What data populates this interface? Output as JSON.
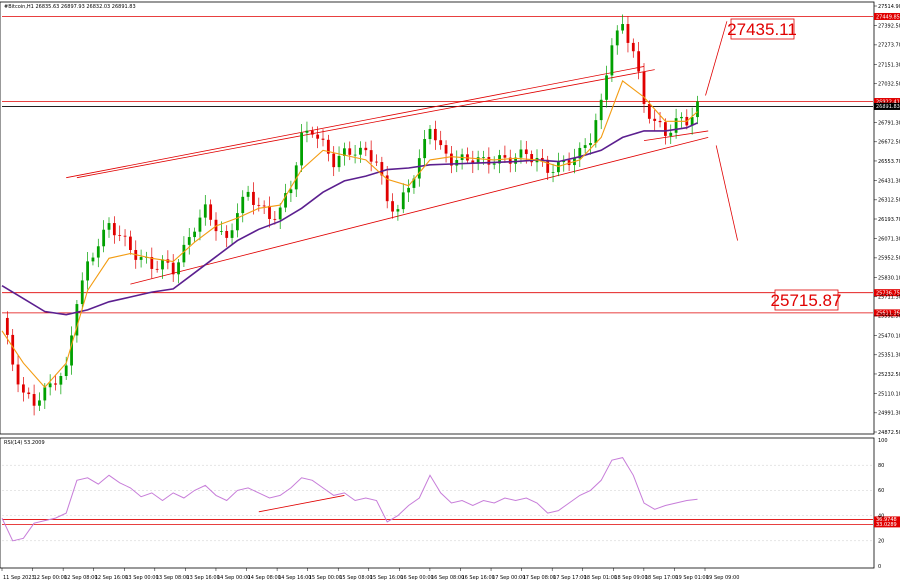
{
  "header": {
    "symbol_line": "#Bitcoin,H1  26835.63 26897.93 26832.03 26891.83",
    "rsi_line": "RSI(14) 53.2009"
  },
  "callouts": {
    "upper_label": "27435.11",
    "lower_label": "25715.87"
  },
  "colors": {
    "bullish": "#00a000",
    "bearish": "#e00000",
    "level": "#e00000",
    "ma_fast": "#f39c12",
    "ma_slow": "#5b1f8f",
    "rsi": "#c77dd9",
    "price_line": "#000000"
  },
  "chart_data": [
    {
      "type": "candlestick",
      "title": "#Bitcoin,H1",
      "y_ticks": [
        "27514.90",
        "27392.50",
        "27273.70",
        "27151.30",
        "27032.50",
        "26910.10",
        "26791.30",
        "26672.50",
        "26553.70",
        "26431.30",
        "26312.50",
        "26193.70",
        "26071.30",
        "25952.50",
        "25830.10",
        "25711.30",
        "25592.50",
        "25470.10",
        "25351.30",
        "25232.50",
        "25110.10",
        "24991.30",
        "24872.50"
      ],
      "ylim": [
        24872.5,
        27514.9
      ],
      "x_ticks": [
        "11 Sep 2023",
        "12 Sep 00:00",
        "12 Sep 08:00",
        "12 Sep 16:00",
        "13 Sep 00:00",
        "13 Sep 08:00",
        "13 Sep 16:00",
        "14 Sep 00:00",
        "14 Sep 08:00",
        "14 Sep 16:00",
        "15 Sep 00:00",
        "15 Sep 08:00",
        "15 Sep 16:00",
        "16 Sep 00:00",
        "16 Sep 08:00",
        "16 Sep 16:00",
        "17 Sep 00:00",
        "17 Sep 08:00",
        "17 Sep 17:00",
        "18 Sep 01:00",
        "18 Sep 09:00",
        "18 Sep 17:00",
        "19 Sep 01:00",
        "19 Sep 09:00"
      ],
      "horizontal_levels": [
        {
          "value": 27449.85,
          "label": "27449.85"
        },
        {
          "value": 26922.41,
          "label": "26922.41"
        },
        {
          "value": 25736.75,
          "label": "25736.75"
        },
        {
          "value": 25611.36,
          "label": "25611.36"
        }
      ],
      "current_price": {
        "value": 26891.83,
        "label": "26891.83"
      },
      "close_path": [
        [
          0,
          25580
        ],
        [
          2,
          25300
        ],
        [
          4,
          25100
        ],
        [
          6,
          25060
        ],
        [
          8,
          25120
        ],
        [
          10,
          25200
        ],
        [
          12,
          25250
        ],
        [
          14,
          25700
        ],
        [
          16,
          25900
        ],
        [
          18,
          26050
        ],
        [
          20,
          26150
        ],
        [
          22,
          26100
        ],
        [
          24,
          26000
        ],
        [
          26,
          25950
        ],
        [
          28,
          25900
        ],
        [
          30,
          25920
        ],
        [
          32,
          25880
        ],
        [
          34,
          26000
        ],
        [
          36,
          26150
        ],
        [
          38,
          26250
        ],
        [
          40,
          26150
        ],
        [
          42,
          26050
        ],
        [
          44,
          26250
        ],
        [
          46,
          26350
        ],
        [
          48,
          26280
        ],
        [
          50,
          26200
        ],
        [
          52,
          26250
        ],
        [
          54,
          26400
        ],
        [
          56,
          26700
        ],
        [
          58,
          26750
        ],
        [
          60,
          26650
        ],
        [
          62,
          26550
        ],
        [
          64,
          26600
        ],
        [
          66,
          26620
        ],
        [
          68,
          26600
        ],
        [
          70,
          26560
        ],
        [
          72,
          26300
        ],
        [
          74,
          26250
        ],
        [
          76,
          26400
        ],
        [
          78,
          26550
        ],
        [
          80,
          26780
        ],
        [
          82,
          26620
        ],
        [
          84,
          26560
        ],
        [
          86,
          26560
        ],
        [
          88,
          26570
        ],
        [
          90,
          26550
        ],
        [
          92,
          26560
        ],
        [
          94,
          26560
        ],
        [
          96,
          26580
        ],
        [
          98,
          26600
        ],
        [
          100,
          26560
        ],
        [
          102,
          26500
        ],
        [
          104,
          26520
        ],
        [
          106,
          26560
        ],
        [
          108,
          26600
        ],
        [
          110,
          26700
        ],
        [
          112,
          26900
        ],
        [
          114,
          27300
        ],
        [
          116,
          27380
        ],
        [
          118,
          27250
        ],
        [
          120,
          26900
        ],
        [
          122,
          26800
        ],
        [
          124,
          26720
        ],
        [
          126,
          26800
        ],
        [
          128,
          26800
        ],
        [
          130,
          26892
        ]
      ],
      "ma_fast": [
        [
          0,
          25500
        ],
        [
          4,
          25300
        ],
        [
          8,
          25150
        ],
        [
          12,
          25300
        ],
        [
          16,
          25750
        ],
        [
          20,
          25950
        ],
        [
          24,
          25980
        ],
        [
          28,
          25950
        ],
        [
          32,
          25930
        ],
        [
          36,
          26050
        ],
        [
          40,
          26150
        ],
        [
          44,
          26200
        ],
        [
          48,
          26260
        ],
        [
          52,
          26280
        ],
        [
          56,
          26500
        ],
        [
          60,
          26620
        ],
        [
          64,
          26590
        ],
        [
          68,
          26560
        ],
        [
          72,
          26440
        ],
        [
          76,
          26400
        ],
        [
          80,
          26560
        ],
        [
          84,
          26580
        ],
        [
          88,
          26570
        ],
        [
          92,
          26560
        ],
        [
          96,
          26570
        ],
        [
          100,
          26560
        ],
        [
          104,
          26520
        ],
        [
          108,
          26560
        ],
        [
          112,
          26700
        ],
        [
          116,
          27050
        ],
        [
          120,
          26950
        ],
        [
          124,
          26800
        ],
        [
          128,
          26800
        ],
        [
          130,
          26860
        ]
      ],
      "ma_slow": [
        [
          0,
          25780
        ],
        [
          4,
          25700
        ],
        [
          8,
          25620
        ],
        [
          12,
          25600
        ],
        [
          16,
          25630
        ],
        [
          20,
          25680
        ],
        [
          24,
          25710
        ],
        [
          28,
          25740
        ],
        [
          32,
          25760
        ],
        [
          36,
          25860
        ],
        [
          40,
          25960
        ],
        [
          44,
          26060
        ],
        [
          48,
          26130
        ],
        [
          52,
          26180
        ],
        [
          56,
          26260
        ],
        [
          60,
          26360
        ],
        [
          64,
          26430
        ],
        [
          68,
          26460
        ],
        [
          72,
          26500
        ],
        [
          76,
          26510
        ],
        [
          80,
          26530
        ],
        [
          84,
          26535
        ],
        [
          88,
          26540
        ],
        [
          92,
          26545
        ],
        [
          96,
          26550
        ],
        [
          100,
          26560
        ],
        [
          104,
          26550
        ],
        [
          108,
          26580
        ],
        [
          112,
          26620
        ],
        [
          116,
          26700
        ],
        [
          120,
          26740
        ],
        [
          124,
          26740
        ],
        [
          128,
          26760
        ],
        [
          130,
          26790
        ]
      ],
      "channel": {
        "upper": [
          [
            12,
            26450
          ],
          [
            120,
            27140
          ]
        ],
        "upper_inner": [
          [
            14,
            26450
          ],
          [
            122,
            27120
          ]
        ],
        "lower": [
          [
            24,
            25790
          ],
          [
            132,
            26700
          ]
        ],
        "lower_short": [
          [
            120,
            26680
          ],
          [
            132,
            26740
          ]
        ]
      },
      "projections": [
        {
          "from": [
            130,
            26960
          ],
          "to": [
            134,
            27420
          ]
        },
        {
          "from": [
            132,
            26650
          ],
          "to": [
            136,
            26060
          ]
        }
      ]
    },
    {
      "type": "line",
      "title": "RSI(14) 53.2009",
      "y_ticks": [
        "100",
        "80",
        "60",
        "40",
        "20",
        "0"
      ],
      "ylim": [
        0,
        100
      ],
      "levels": [
        {
          "value": 36.97,
          "label": "36.9748"
        },
        {
          "value": 33.03,
          "label": "33.0289"
        }
      ],
      "series": [
        {
          "values": [
            [
              0,
              38
            ],
            [
              2,
              20
            ],
            [
              4,
              22
            ],
            [
              6,
              34
            ],
            [
              8,
              36
            ],
            [
              10,
              38
            ],
            [
              12,
              42
            ],
            [
              14,
              68
            ],
            [
              16,
              70
            ],
            [
              18,
              65
            ],
            [
              20,
              72
            ],
            [
              22,
              66
            ],
            [
              24,
              62
            ],
            [
              26,
              55
            ],
            [
              28,
              58
            ],
            [
              30,
              52
            ],
            [
              32,
              58
            ],
            [
              34,
              54
            ],
            [
              36,
              60
            ],
            [
              38,
              64
            ],
            [
              40,
              56
            ],
            [
              42,
              52
            ],
            [
              44,
              60
            ],
            [
              46,
              62
            ],
            [
              48,
              58
            ],
            [
              50,
              54
            ],
            [
              52,
              56
            ],
            [
              54,
              62
            ],
            [
              56,
              70
            ],
            [
              58,
              68
            ],
            [
              60,
              62
            ],
            [
              62,
              56
            ],
            [
              64,
              58
            ],
            [
              66,
              52
            ],
            [
              68,
              54
            ],
            [
              70,
              52
            ],
            [
              72,
              35
            ],
            [
              74,
              40
            ],
            [
              76,
              48
            ],
            [
              78,
              54
            ],
            [
              80,
              72
            ],
            [
              82,
              58
            ],
            [
              84,
              50
            ],
            [
              86,
              52
            ],
            [
              88,
              48
            ],
            [
              90,
              52
            ],
            [
              92,
              50
            ],
            [
              94,
              54
            ],
            [
              96,
              52
            ],
            [
              98,
              54
            ],
            [
              100,
              50
            ],
            [
              102,
              42
            ],
            [
              104,
              44
            ],
            [
              106,
              50
            ],
            [
              108,
              56
            ],
            [
              110,
              60
            ],
            [
              112,
              68
            ],
            [
              114,
              84
            ],
            [
              116,
              86
            ],
            [
              118,
              72
            ],
            [
              120,
              50
            ],
            [
              122,
              45
            ],
            [
              124,
              48
            ],
            [
              126,
              50
            ],
            [
              128,
              52
            ],
            [
              130,
              53
            ]
          ]
        }
      ],
      "trendline": [
        [
          48,
          43
        ],
        [
          64,
          56
        ]
      ]
    }
  ]
}
